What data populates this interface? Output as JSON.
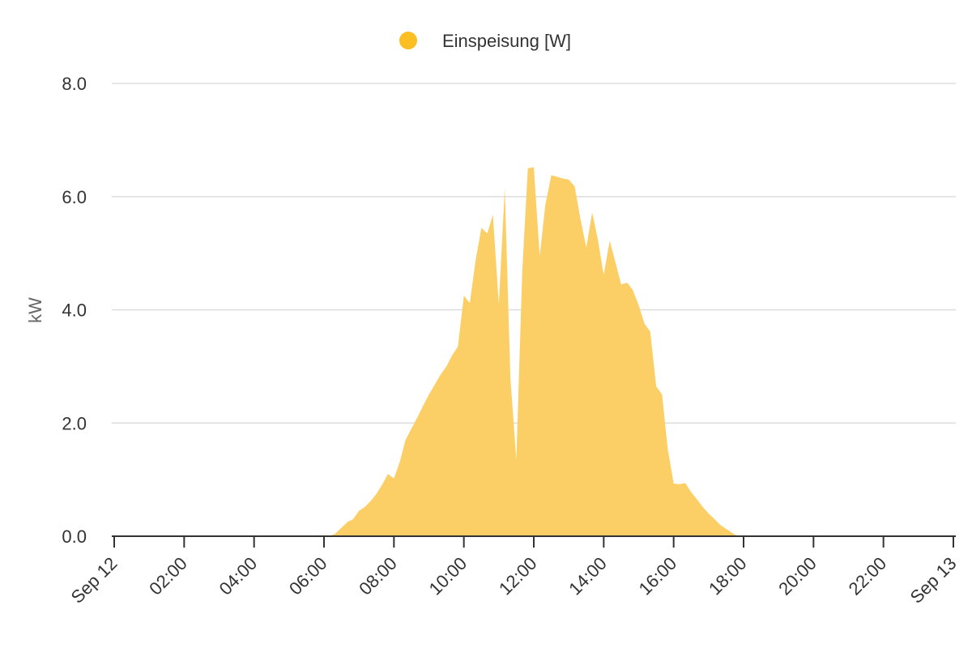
{
  "colors": {
    "series": "#FBBF24",
    "area_fill": "#FCCF66",
    "grid": "#DDDDDD",
    "axis": "#333333",
    "text": "#333333",
    "axis_title": "#666666"
  },
  "chart_data": {
    "type": "area",
    "title": "",
    "ylabel": "kW",
    "xlabel": "",
    "ylim": [
      0,
      8
    ],
    "x_unit": "hours since Sep 12 00:00",
    "xlim": [
      0,
      24
    ],
    "yticks": [
      "0.0",
      "2.0",
      "4.0",
      "6.0",
      "8.0"
    ],
    "xticks": [
      "Sep 12",
      "02:00",
      "04:00",
      "06:00",
      "08:00",
      "10:00",
      "12:00",
      "14:00",
      "16:00",
      "18:00",
      "20:00",
      "22:00",
      "Sep 13"
    ],
    "legend": {
      "position": "top-center",
      "entries": [
        "Einspeisung [W]"
      ]
    },
    "grid": true,
    "series": [
      {
        "name": "Einspeisung [W]",
        "points": [
          [
            0.0,
            0.0
          ],
          [
            6.17,
            0.0
          ],
          [
            6.33,
            0.05
          ],
          [
            6.5,
            0.15
          ],
          [
            6.67,
            0.25
          ],
          [
            6.83,
            0.3
          ],
          [
            7.0,
            0.45
          ],
          [
            7.17,
            0.52
          ],
          [
            7.33,
            0.62
          ],
          [
            7.5,
            0.75
          ],
          [
            7.67,
            0.92
          ],
          [
            7.83,
            1.1
          ],
          [
            8.0,
            1.02
          ],
          [
            8.17,
            1.32
          ],
          [
            8.33,
            1.7
          ],
          [
            8.5,
            1.9
          ],
          [
            8.67,
            2.1
          ],
          [
            8.83,
            2.3
          ],
          [
            9.0,
            2.5
          ],
          [
            9.17,
            2.68
          ],
          [
            9.33,
            2.85
          ],
          [
            9.5,
            3.0
          ],
          [
            9.67,
            3.2
          ],
          [
            9.83,
            3.35
          ],
          [
            10.0,
            4.25
          ],
          [
            10.17,
            4.12
          ],
          [
            10.33,
            4.85
          ],
          [
            10.5,
            5.45
          ],
          [
            10.67,
            5.35
          ],
          [
            10.83,
            5.68
          ],
          [
            11.0,
            4.1
          ],
          [
            11.17,
            6.15
          ],
          [
            11.33,
            2.8
          ],
          [
            11.5,
            1.35
          ],
          [
            11.67,
            4.7
          ],
          [
            11.83,
            6.5
          ],
          [
            12.0,
            6.52
          ],
          [
            12.17,
            4.95
          ],
          [
            12.33,
            5.85
          ],
          [
            12.5,
            6.38
          ],
          [
            12.67,
            6.35
          ],
          [
            12.83,
            6.32
          ],
          [
            13.0,
            6.3
          ],
          [
            13.17,
            6.18
          ],
          [
            13.33,
            5.62
          ],
          [
            13.5,
            5.1
          ],
          [
            13.67,
            5.72
          ],
          [
            13.83,
            5.25
          ],
          [
            14.0,
            4.62
          ],
          [
            14.17,
            5.22
          ],
          [
            14.33,
            4.85
          ],
          [
            14.5,
            4.45
          ],
          [
            14.67,
            4.48
          ],
          [
            14.83,
            4.35
          ],
          [
            15.0,
            4.08
          ],
          [
            15.17,
            3.75
          ],
          [
            15.33,
            3.62
          ],
          [
            15.5,
            2.65
          ],
          [
            15.67,
            2.5
          ],
          [
            15.83,
            1.55
          ],
          [
            16.0,
            0.93
          ],
          [
            16.17,
            0.92
          ],
          [
            16.33,
            0.94
          ],
          [
            16.5,
            0.78
          ],
          [
            16.67,
            0.65
          ],
          [
            16.83,
            0.52
          ],
          [
            17.0,
            0.4
          ],
          [
            17.17,
            0.3
          ],
          [
            17.33,
            0.2
          ],
          [
            17.5,
            0.13
          ],
          [
            17.67,
            0.06
          ],
          [
            17.83,
            0.0
          ],
          [
            24.0,
            0.0
          ]
        ]
      }
    ]
  }
}
